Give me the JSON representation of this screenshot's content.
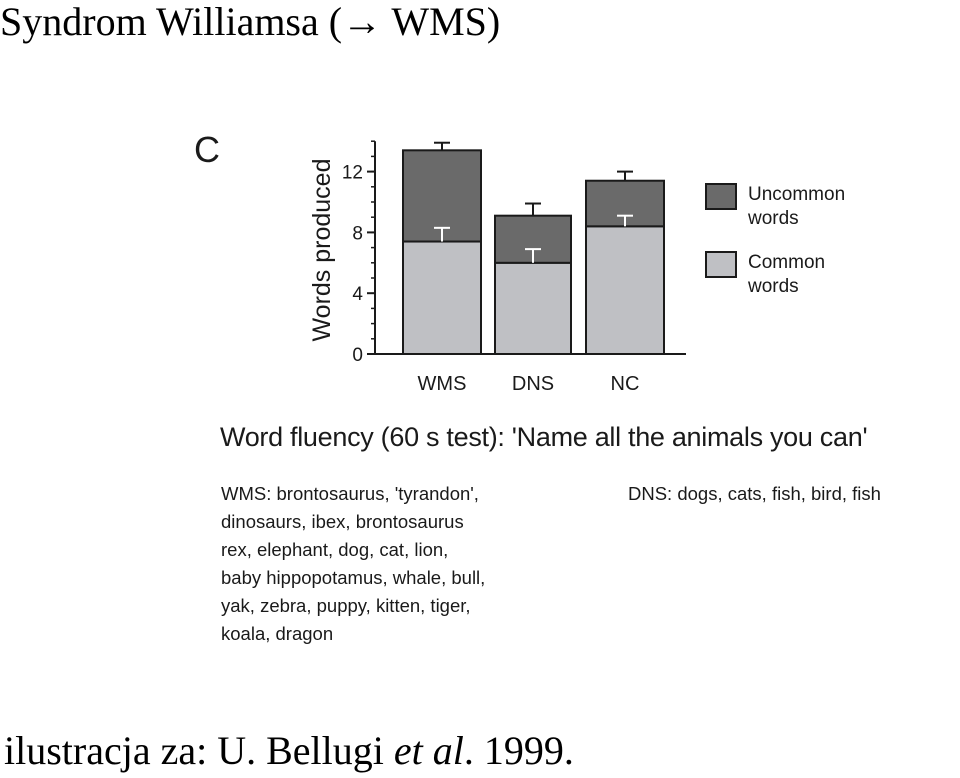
{
  "slide": {
    "title": "Syndrom Williamsa (→ WMS)",
    "credit_prefix": "ilustracja za: U. Bellugi ",
    "credit_italic": "et al",
    "credit_suffix": ". 1999."
  },
  "chart_data": {
    "type": "bar",
    "stacked": true,
    "panel_label": "C",
    "categories": [
      "WMS",
      "DNS",
      "NC"
    ],
    "series": [
      {
        "name": "Common words",
        "values": [
          7.4,
          6.0,
          8.4
        ],
        "error": [
          0.9,
          0.9,
          0.7
        ],
        "color": "#bfc0c4"
      },
      {
        "name": "Uncommon words",
        "values": [
          6.0,
          3.1,
          3.0
        ],
        "error": [
          0.5,
          0.8,
          0.6
        ],
        "color": "#6a6a6a"
      }
    ],
    "ylabel": "Words produced",
    "xlabel": "",
    "ylim": [
      0,
      14
    ],
    "yticks": [
      "0",
      "4",
      "8",
      "12"
    ],
    "grid": false,
    "legend_position": "right",
    "legend": [
      {
        "line1": "Uncommon",
        "line2": "words"
      },
      {
        "line1": "Common",
        "line2": "words"
      }
    ]
  },
  "fluency": {
    "title": "Word fluency (60 s test): 'Name all the animals you can'",
    "wms_lines": [
      "WMS: brontosaurus, 'tyrandon',",
      "dinosaurs, ibex, brontosaurus",
      "rex, elephant, dog, cat, lion,",
      "baby hippopotamus, whale, bull,",
      "yak, zebra, puppy, kitten, tiger,",
      "koala, dragon"
    ],
    "dns_line": "DNS: dogs, cats, fish, bird, fish"
  }
}
